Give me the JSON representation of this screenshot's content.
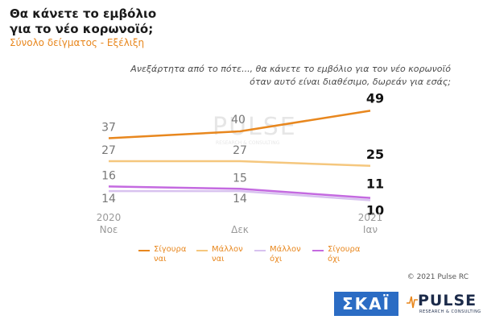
{
  "header": {
    "title_line1": "Θα κάνετε το εμβόλιο",
    "title_line2": "για το νέο κορωνοϊό;",
    "subtitle": "Σύνολο δείγματος - Εξέλιξη"
  },
  "question": {
    "line1": "Ανεξάρτητα από το πότε..., θα κάνετε το εμβόλιο για τον νέο κορωνοϊό",
    "line2": "όταν αυτό είναι διαθέσιμο, δωρεάν για εσάς;"
  },
  "chart_data": {
    "type": "line",
    "x": [
      "2020\nΝοε",
      "Δεκ",
      "2021\nΙαν"
    ],
    "x_tick_labels": [
      {
        "line1": "2020",
        "line2": "Νοε"
      },
      {
        "line1": "",
        "line2": "Δεκ"
      },
      {
        "line1": "2021",
        "line2": "Ιαν"
      }
    ],
    "series": [
      {
        "name": "Σίγουρα ναι",
        "label": "Σίγουρα\nναι",
        "color": "#e8871e",
        "values": [
          37,
          40,
          49
        ]
      },
      {
        "name": "Μάλλον ναι",
        "label": "Μάλλον\nναι",
        "color": "#f5c77e",
        "values": [
          27,
          27,
          25
        ]
      },
      {
        "name": "Μάλλον όχι",
        "label": "Μάλλον\nόχι",
        "color": "#d8c2ef",
        "values": [
          14,
          14,
          10
        ]
      },
      {
        "name": "Σίγουρα όχι",
        "label": "Σίγουρα\nόχι",
        "color": "#c46ae0",
        "values": [
          16,
          15,
          11
        ]
      }
    ],
    "ylim": [
      0,
      60
    ],
    "grid": false,
    "legend": "bottom"
  },
  "footer": {
    "copyright": "© 2021 Pulse RC"
  },
  "logos": {
    "skai": "ΣΚΑΪ",
    "pulse": "PULSE",
    "pulse_tagline": "RESEARCH & CONSULTING"
  }
}
